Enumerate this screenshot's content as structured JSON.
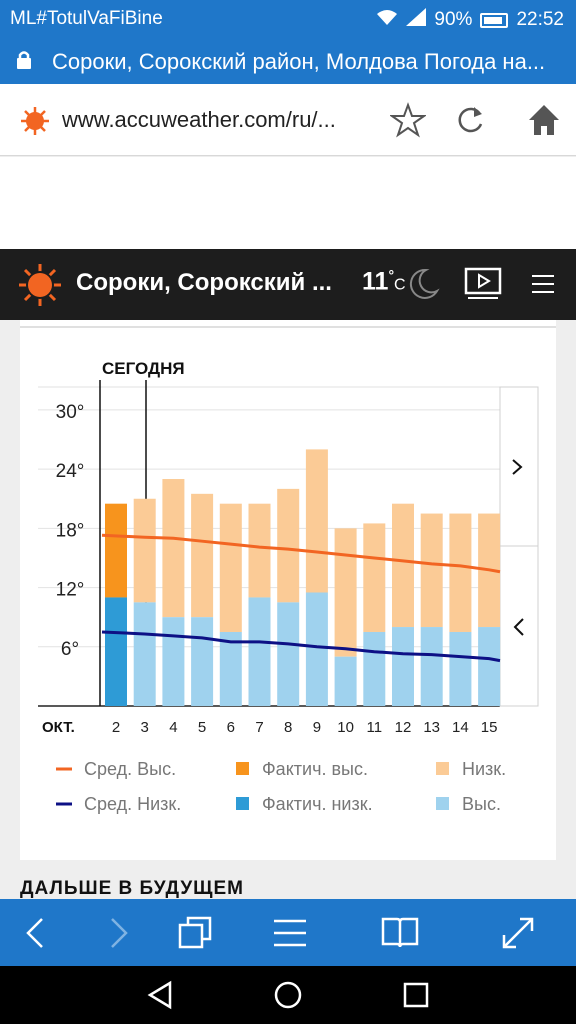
{
  "status_bar": {
    "carrier": "ML#TotulVaFiBine",
    "battery": "90%",
    "time": "22:52"
  },
  "tab": {
    "title": "Сороки, Сорокский район, Молдова Погода на..."
  },
  "address_bar": {
    "url": "www.accuweather.com/ru/..."
  },
  "site_header": {
    "location": "Сороки, Сорокский ...",
    "temperature": "11",
    "unit": "C"
  },
  "chart_data": {
    "type": "bar",
    "today_label": "СЕГОДНЯ",
    "month_label": "ОКТ.",
    "categories": [
      "2",
      "3",
      "4",
      "5",
      "6",
      "7",
      "8",
      "9",
      "10",
      "11",
      "12",
      "13",
      "14",
      "15"
    ],
    "y_ticks": [
      "30°",
      "24°",
      "18°",
      "12°",
      "6°"
    ],
    "ylim": [
      0,
      32
    ],
    "series": [
      {
        "name": "Выс.",
        "values": [
          20.5,
          21,
          23,
          21.5,
          20.5,
          20.5,
          22,
          26,
          18,
          18.5,
          20.5,
          19.5,
          19.5,
          19.5
        ]
      },
      {
        "name": "Низк.",
        "values": [
          11,
          10.5,
          9,
          9,
          7.5,
          11,
          10.5,
          11.5,
          5,
          7.5,
          8,
          8,
          7.5,
          8
        ]
      },
      {
        "name": "Сред. Выс.",
        "values": [
          17.3,
          17.1,
          17.0,
          16.7,
          16.4,
          16.1,
          15.9,
          15.6,
          15.3,
          15.0,
          14.7,
          14.4,
          14.2,
          13.8
        ]
      },
      {
        "name": "Сред. Низк.",
        "values": [
          7.5,
          7.3,
          7.1,
          6.9,
          6.5,
          6.5,
          6.3,
          6.0,
          5.8,
          5.5,
          5.3,
          5.2,
          5.0,
          4.8
        ]
      }
    ],
    "actual": {
      "high": 20.5,
      "low": 11
    },
    "colors": {
      "avg_high": "#f26522",
      "avg_low": "#0d1085",
      "actual_high": "#f7941d",
      "actual_low": "#2e9bd6",
      "low_bar": "#fbcb96",
      "high_bar": "#9fd2ee"
    },
    "legend": [
      {
        "label": "Сред. Выс.",
        "swatch": "line",
        "color": "#f26522"
      },
      {
        "label": "Фактич. выс.",
        "swatch": "box",
        "color": "#f7941d"
      },
      {
        "label": "Низк.",
        "swatch": "box",
        "color": "#fbcb96"
      },
      {
        "label": "Сред. Низк.",
        "swatch": "line",
        "color": "#0d1085"
      },
      {
        "label": "Фактич. низк.",
        "swatch": "box",
        "color": "#2e9bd6"
      },
      {
        "label": "Выс.",
        "swatch": "box",
        "color": "#9fd2ee"
      }
    ],
    "legend_placement": "bottom",
    "grid": true
  },
  "section_heading": "ДАЛЬШЕ В БУДУЩЕМ"
}
